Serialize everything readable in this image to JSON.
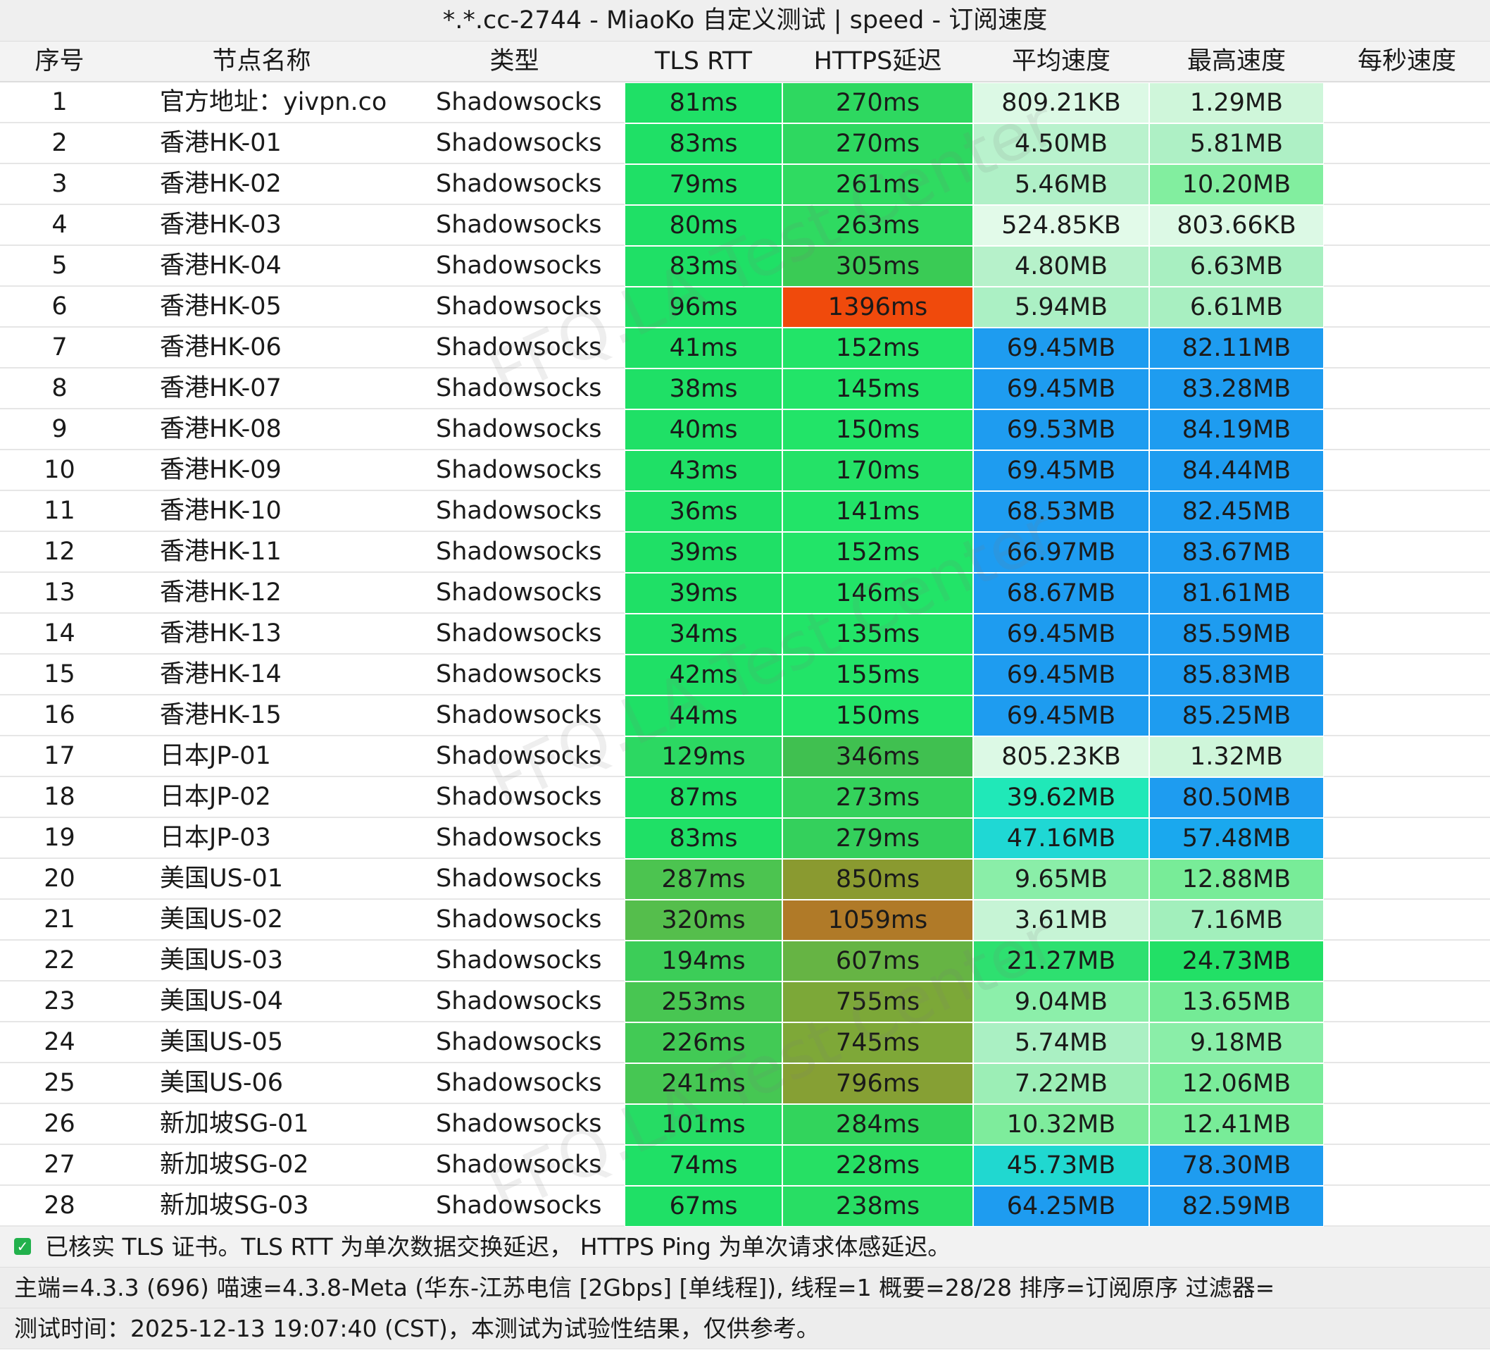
{
  "title": "*.*.cc-2744 - MiaoKo 自定义测试 | speed - 订阅速度",
  "watermark": "FFQ.LA Test Center",
  "table": {
    "columns": [
      "序号",
      "节点名称",
      "类型",
      "TLS RTT",
      "HTTPS延迟",
      "平均速度",
      "最高速度",
      "每秒速度"
    ],
    "rows": [
      [
        "1",
        "官方地址：yivpn.co",
        "Shadowsocks",
        "81ms",
        "270ms",
        "809.21KB",
        "1.29MB"
      ],
      [
        "2",
        "香港HK-01",
        "Shadowsocks",
        "83ms",
        "270ms",
        "4.50MB",
        "5.81MB"
      ],
      [
        "3",
        "香港HK-02",
        "Shadowsocks",
        "79ms",
        "261ms",
        "5.46MB",
        "10.20MB"
      ],
      [
        "4",
        "香港HK-03",
        "Shadowsocks",
        "80ms",
        "263ms",
        "524.85KB",
        "803.66KB"
      ],
      [
        "5",
        "香港HK-04",
        "Shadowsocks",
        "83ms",
        "305ms",
        "4.80MB",
        "6.63MB"
      ],
      [
        "6",
        "香港HK-05",
        "Shadowsocks",
        "96ms",
        "1396ms",
        "5.94MB",
        "6.61MB"
      ],
      [
        "7",
        "香港HK-06",
        "Shadowsocks",
        "41ms",
        "152ms",
        "69.45MB",
        "82.11MB"
      ],
      [
        "8",
        "香港HK-07",
        "Shadowsocks",
        "38ms",
        "145ms",
        "69.45MB",
        "83.28MB"
      ],
      [
        "9",
        "香港HK-08",
        "Shadowsocks",
        "40ms",
        "150ms",
        "69.53MB",
        "84.19MB"
      ],
      [
        "10",
        "香港HK-09",
        "Shadowsocks",
        "43ms",
        "170ms",
        "69.45MB",
        "84.44MB"
      ],
      [
        "11",
        "香港HK-10",
        "Shadowsocks",
        "36ms",
        "141ms",
        "68.53MB",
        "82.45MB"
      ],
      [
        "12",
        "香港HK-11",
        "Shadowsocks",
        "39ms",
        "152ms",
        "66.97MB",
        "83.67MB"
      ],
      [
        "13",
        "香港HK-12",
        "Shadowsocks",
        "39ms",
        "146ms",
        "68.67MB",
        "81.61MB"
      ],
      [
        "14",
        "香港HK-13",
        "Shadowsocks",
        "34ms",
        "135ms",
        "69.45MB",
        "85.59MB"
      ],
      [
        "15",
        "香港HK-14",
        "Shadowsocks",
        "42ms",
        "155ms",
        "69.45MB",
        "85.83MB"
      ],
      [
        "16",
        "香港HK-15",
        "Shadowsocks",
        "44ms",
        "150ms",
        "69.45MB",
        "85.25MB"
      ],
      [
        "17",
        "日本JP-01",
        "Shadowsocks",
        "129ms",
        "346ms",
        "805.23KB",
        "1.32MB"
      ],
      [
        "18",
        "日本JP-02",
        "Shadowsocks",
        "87ms",
        "273ms",
        "39.62MB",
        "80.50MB"
      ],
      [
        "19",
        "日本JP-03",
        "Shadowsocks",
        "83ms",
        "279ms",
        "47.16MB",
        "57.48MB"
      ],
      [
        "20",
        "美国US-01",
        "Shadowsocks",
        "287ms",
        "850ms",
        "9.65MB",
        "12.88MB"
      ],
      [
        "21",
        "美国US-02",
        "Shadowsocks",
        "320ms",
        "1059ms",
        "3.61MB",
        "7.16MB"
      ],
      [
        "22",
        "美国US-03",
        "Shadowsocks",
        "194ms",
        "607ms",
        "21.27MB",
        "24.73MB"
      ],
      [
        "23",
        "美国US-04",
        "Shadowsocks",
        "253ms",
        "755ms",
        "9.04MB",
        "13.65MB"
      ],
      [
        "24",
        "美国US-05",
        "Shadowsocks",
        "226ms",
        "745ms",
        "5.74MB",
        "9.18MB"
      ],
      [
        "25",
        "美国US-06",
        "Shadowsocks",
        "241ms",
        "796ms",
        "7.22MB",
        "12.06MB"
      ],
      [
        "26",
        "新加坡SG-01",
        "Shadowsocks",
        "101ms",
        "284ms",
        "10.32MB",
        "12.41MB"
      ],
      [
        "27",
        "新加坡SG-02",
        "Shadowsocks",
        "74ms",
        "228ms",
        "45.73MB",
        "78.30MB"
      ],
      [
        "28",
        "新加坡SG-03",
        "Shadowsocks",
        "67ms",
        "238ms",
        "64.25MB",
        "82.59MB"
      ]
    ],
    "cell_colors": [
      [
        "#1fe066",
        "#2ed860",
        "#dcf9e5",
        "#cff6da"
      ],
      [
        "#1fe066",
        "#2ed860",
        "#b9f2cd",
        "#aef0c5"
      ],
      [
        "#1fe066",
        "#2fdb61",
        "#b0f0c7",
        "#82ee9f"
      ],
      [
        "#1fe066",
        "#2fda61",
        "#e2fae9",
        "#dcf9e5"
      ],
      [
        "#1fe066",
        "#3acb55",
        "#b6f1ca",
        "#a8efc1"
      ],
      [
        "#1fe066",
        "#f04a0c",
        "#abf0c4",
        "#a8efc1"
      ],
      [
        "#1fe066",
        "#22e468",
        "#1e9cf0",
        "#1e9cf0"
      ],
      [
        "#1fe066",
        "#22e468",
        "#1e9cf0",
        "#1e9cf0"
      ],
      [
        "#1fe066",
        "#22e468",
        "#1e9cf0",
        "#1e9cf0"
      ],
      [
        "#1fe066",
        "#24e267",
        "#1e9cf0",
        "#1e9cf0"
      ],
      [
        "#1fe066",
        "#22e468",
        "#1e9cf0",
        "#1e9cf0"
      ],
      [
        "#1fe066",
        "#22e468",
        "#1e9cf0",
        "#1e9cf0"
      ],
      [
        "#1fe066",
        "#22e468",
        "#1e9cf0",
        "#1e9cf0"
      ],
      [
        "#1fe066",
        "#22e468",
        "#1e9cf0",
        "#1e9cf0"
      ],
      [
        "#1fe066",
        "#22e468",
        "#1e9cf0",
        "#1e9cf0"
      ],
      [
        "#1fe066",
        "#22e468",
        "#1e9cf0",
        "#1e9cf0"
      ],
      [
        "#2cd862",
        "#40c050",
        "#dcf9e5",
        "#cff6da"
      ],
      [
        "#1fe066",
        "#34d25c",
        "#20e8b8",
        "#1e9cf0"
      ],
      [
        "#1fe066",
        "#34d05c",
        "#1fd8d4",
        "#1aa8ee"
      ],
      [
        "#4cc450",
        "#8a9a30",
        "#8aeea8",
        "#78ec98"
      ],
      [
        "#55be4c",
        "#b07a28",
        "#c6f4d5",
        "#a2efbc"
      ],
      [
        "#3ccd58",
        "#66b444",
        "#2ee070",
        "#22e066"
      ],
      [
        "#48c652",
        "#7ca838",
        "#8cefaa",
        "#74eb96"
      ],
      [
        "#42ca55",
        "#7ea838",
        "#aaf0c3",
        "#8aeea8"
      ],
      [
        "#46c753",
        "#86a034",
        "#9ceeb6",
        "#7aec9a"
      ],
      [
        "#26dc64",
        "#32d45c",
        "#7eec9c",
        "#78ec98"
      ],
      [
        "#1fe066",
        "#26e064",
        "#20d8d0",
        "#1e9cf0"
      ],
      [
        "#1fe066",
        "#28de64",
        "#1e9cf0",
        "#1e9cf0"
      ]
    ]
  },
  "footer": {
    "lines": [
      "已核实 TLS 证书。TLS RTT 为单次数据交换延迟， HTTPS Ping 为单次请求体感延迟。",
      "主端=4.3.3 (696) 喵速=4.3.8-Meta (华东-江苏电信 [2Gbps] [单线程]), 线程=1 概要=28/28 排序=订阅原序 过滤器=",
      "测试时间：2025-12-13 19:07:40 (CST)，本测试为试验性结果，仅供参考。"
    ]
  }
}
